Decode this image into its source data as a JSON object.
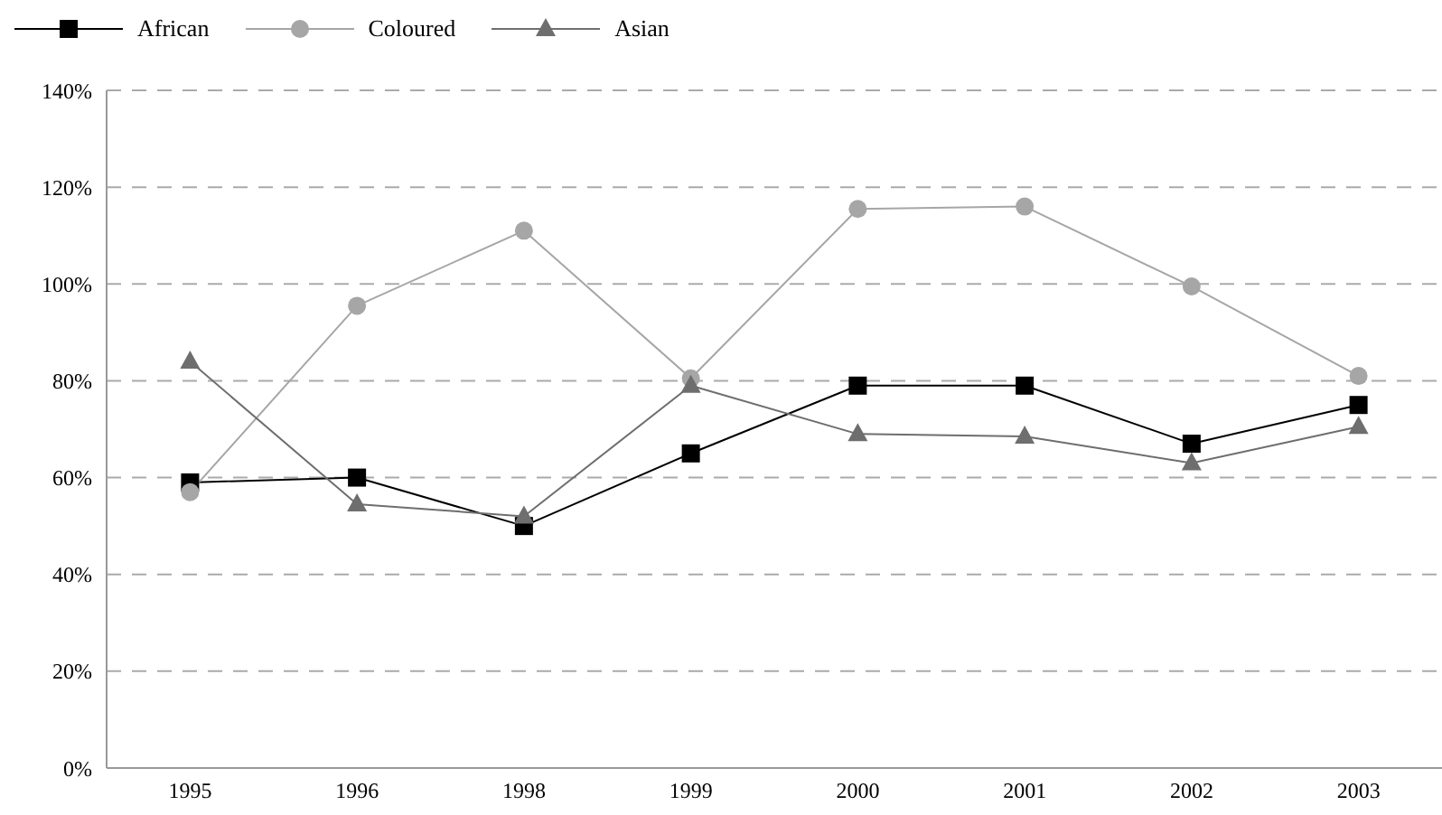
{
  "chart_data": {
    "type": "line",
    "categories": [
      "1995",
      "1996",
      "1998",
      "1999",
      "2000",
      "2001",
      "2002",
      "2003"
    ],
    "series": [
      {
        "name": "African",
        "color": "#000000",
        "marker": "square",
        "values": [
          59,
          60,
          50,
          65,
          79,
          79,
          67,
          75
        ]
      },
      {
        "name": "Coloured",
        "color": "#a6a6a6",
        "marker": "circle",
        "values": [
          57,
          95.5,
          111,
          80.5,
          115.5,
          116,
          99.5,
          81
        ]
      },
      {
        "name": "Asian",
        "color": "#6e6e6e",
        "marker": "triangle",
        "values": [
          84,
          54.5,
          52,
          79,
          69,
          68.5,
          63,
          70.5
        ]
      }
    ],
    "ylim": [
      0,
      140
    ],
    "yticks": [
      {
        "value": 0,
        "label": "0%"
      },
      {
        "value": 20,
        "label": "20%"
      },
      {
        "value": 40,
        "label": "40%"
      },
      {
        "value": 60,
        "label": "60%"
      },
      {
        "value": 80,
        "label": "80%"
      },
      {
        "value": 100,
        "label": "100%"
      },
      {
        "value": 120,
        "label": "120%"
      },
      {
        "value": 140,
        "label": "140%"
      }
    ],
    "grid": "y",
    "legend": "top left",
    "line_style": "solid"
  }
}
